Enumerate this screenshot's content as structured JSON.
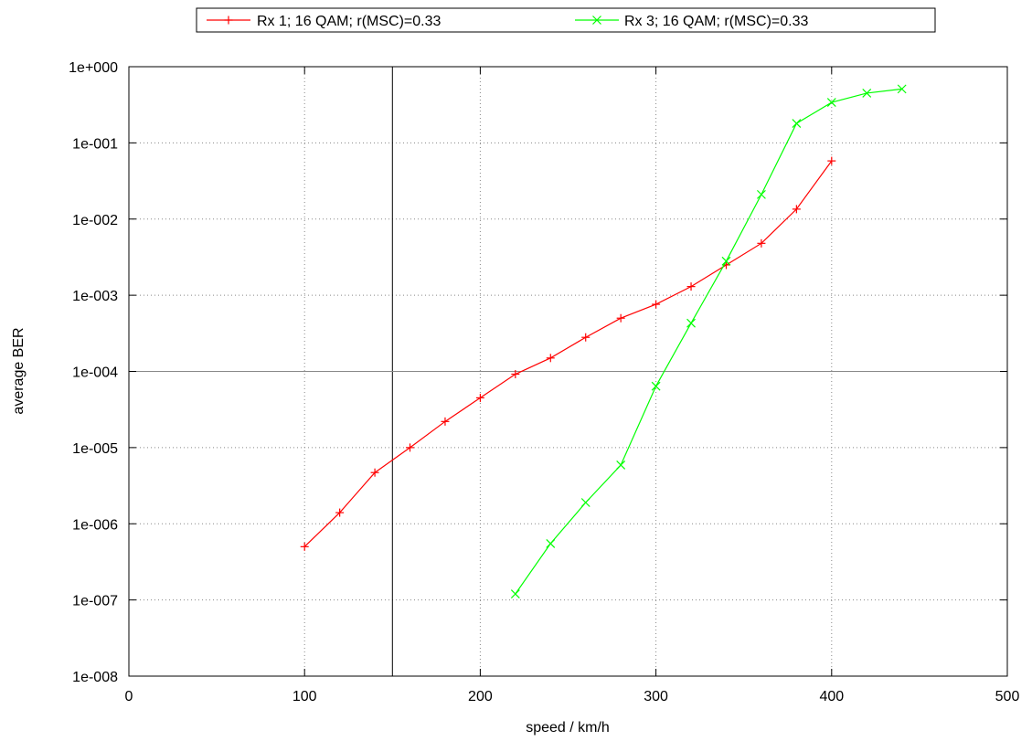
{
  "chart_data": {
    "type": "line",
    "title": "",
    "xlabel": "speed / km/h",
    "ylabel": "average BER",
    "xlim": [
      0,
      500
    ],
    "ylim": [
      1e-08,
      1
    ],
    "y_scale": "log",
    "x_ticks": [
      0,
      100,
      200,
      300,
      400,
      500
    ],
    "x_tick_labels": [
      "0",
      "100",
      "200",
      "300",
      "400",
      "500"
    ],
    "y_ticks": [
      1e-08,
      1e-07,
      1e-06,
      1e-05,
      0.0001,
      0.001,
      0.01,
      0.1,
      1
    ],
    "y_tick_labels": [
      "1e-008",
      "1e-007",
      "1e-006",
      "1e-005",
      "1e-004",
      "1e-003",
      "1e-002",
      "1e-001",
      "1e+000"
    ],
    "grid": true,
    "legend_position": "top, outside plot",
    "reference_lines": {
      "vertical_x": 150,
      "horizontal_y": 0.0001
    },
    "series": [
      {
        "name": "Rx 1; 16 QAM; r(MSC)=0.33",
        "color": "#ff0000",
        "marker": "plus",
        "x": [
          100,
          120,
          140,
          160,
          180,
          200,
          220,
          240,
          260,
          280,
          300,
          320,
          340,
          360,
          380,
          400
        ],
        "y": [
          5e-07,
          1.4e-06,
          4.7e-06,
          1e-05,
          2.2e-05,
          4.5e-05,
          9.2e-05,
          0.00015,
          0.00028,
          0.0005,
          0.00076,
          0.0013,
          0.0025,
          0.0048,
          0.0135,
          0.058
        ]
      },
      {
        "name": "Rx 3; 16 QAM; r(MSC)=0.33",
        "color": "#00ff00",
        "marker": "cross",
        "x": [
          220,
          240,
          260,
          280,
          300,
          320,
          340,
          360,
          380,
          400,
          420,
          440
        ],
        "y": [
          1.2e-07,
          5.5e-07,
          1.9e-06,
          5.9e-06,
          6.4e-05,
          0.00043,
          0.0028,
          0.021,
          0.18,
          0.34,
          0.45,
          0.51
        ]
      }
    ]
  }
}
